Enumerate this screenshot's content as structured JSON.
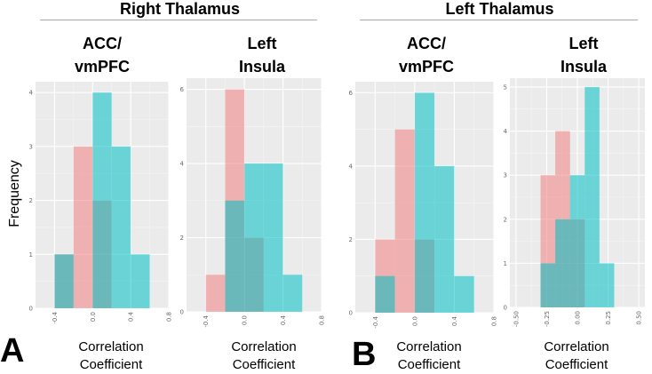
{
  "figure": {
    "left_section_title": "Right Thalamus",
    "right_section_title": "Left Thalamus",
    "y_axis_label": "Frequency",
    "panel_a_label": "A",
    "panel_b_label": "B",
    "column_titles": {
      "rt_acc": [
        "ACC/",
        "vmPFC"
      ],
      "rt_ins": [
        "Left",
        "Insula"
      ],
      "lt_acc": [
        "ACC/",
        "vmPFC"
      ],
      "lt_ins": [
        "Left",
        "Insula"
      ]
    },
    "x_labels": {
      "rt_acc": [
        "Correlation",
        "Coefficient"
      ],
      "rt_ins": [
        "Correlation",
        "Coefficient"
      ],
      "lt_acc": [
        "Correlation",
        "Coefficient"
      ],
      "lt_ins": [
        "Correlation",
        "Coefficient"
      ]
    }
  },
  "colors": {
    "series_a": "#f08080",
    "series_b": "#00bfc4",
    "panel_bg": "#ebebeb",
    "grid_major": "#ffffff"
  },
  "chart_data": [
    {
      "id": "rt_acc",
      "type": "histogram",
      "group": "Right Thalamus",
      "title": "ACC/ vmPFC",
      "xlabel": "Correlation Coefficient",
      "ylabel": "Frequency",
      "xlim": [
        -0.6,
        0.8
      ],
      "ylim": [
        0,
        4.2
      ],
      "xticks": [
        -0.4,
        0.0,
        0.4,
        0.8
      ],
      "xtick_labels": [
        "-0.4",
        "0.0",
        "0.4",
        "0.8"
      ],
      "yticks": [
        0,
        1,
        2,
        3,
        4
      ],
      "ytick_labels": [
        "0",
        "1",
        "2",
        "3",
        "4"
      ],
      "series": [
        {
          "name": "series_a",
          "bins": [
            [
              -0.4,
              -0.2,
              1
            ],
            [
              -0.2,
              0.0,
              3
            ],
            [
              0.0,
              0.2,
              2
            ]
          ]
        },
        {
          "name": "series_b",
          "bins": [
            [
              -0.4,
              -0.2,
              1
            ],
            [
              0.0,
              0.2,
              4
            ],
            [
              0.2,
              0.4,
              3
            ],
            [
              0.4,
              0.6,
              1
            ]
          ]
        }
      ]
    },
    {
      "id": "rt_ins",
      "type": "histogram",
      "group": "Right Thalamus",
      "title": "Left Insula",
      "xlabel": "Correlation Coefficient",
      "ylabel": "Frequency",
      "xlim": [
        -0.6,
        0.8
      ],
      "ylim": [
        0,
        6.3
      ],
      "xticks": [
        -0.4,
        0.0,
        0.4,
        0.8
      ],
      "xtick_labels": [
        "-0.4",
        "0.0",
        "0.4",
        "0.8"
      ],
      "yticks": [
        0,
        2,
        4,
        6
      ],
      "ytick_labels": [
        "0",
        "2",
        "4",
        "6"
      ],
      "series": [
        {
          "name": "series_a",
          "bins": [
            [
              -0.4,
              -0.2,
              1
            ],
            [
              -0.2,
              0.0,
              6
            ],
            [
              0.0,
              0.2,
              2
            ]
          ]
        },
        {
          "name": "series_b",
          "bins": [
            [
              -0.2,
              0.0,
              3
            ],
            [
              0.0,
              0.2,
              4
            ],
            [
              0.2,
              0.4,
              4
            ],
            [
              0.4,
              0.6,
              1
            ]
          ]
        }
      ]
    },
    {
      "id": "lt_acc",
      "type": "histogram",
      "group": "Left Thalamus",
      "title": "ACC/ vmPFC",
      "xlabel": "Correlation Coefficient",
      "ylabel": "Frequency",
      "xlim": [
        -0.6,
        0.8
      ],
      "ylim": [
        0,
        6.3
      ],
      "xticks": [
        -0.4,
        0.0,
        0.4,
        0.8
      ],
      "xtick_labels": [
        "-0.4",
        "0.0",
        "0.4",
        "0.8"
      ],
      "yticks": [
        0,
        2,
        4,
        6
      ],
      "ytick_labels": [
        "0",
        "2",
        "4",
        "6"
      ],
      "series": [
        {
          "name": "series_a",
          "bins": [
            [
              -0.4,
              -0.2,
              2
            ],
            [
              -0.2,
              0.0,
              5
            ],
            [
              0.0,
              0.2,
              2
            ]
          ]
        },
        {
          "name": "series_b",
          "bins": [
            [
              -0.4,
              -0.2,
              1
            ],
            [
              0.0,
              0.2,
              6
            ],
            [
              0.2,
              0.4,
              4
            ],
            [
              0.4,
              0.6,
              1
            ]
          ]
        }
      ]
    },
    {
      "id": "lt_ins",
      "type": "histogram",
      "group": "Left Thalamus",
      "title": "Left Insula",
      "xlabel": "Correlation Coefficient",
      "ylabel": "Frequency",
      "xlim": [
        -0.55,
        0.55
      ],
      "ylim": [
        0,
        5.2
      ],
      "xticks": [
        -0.5,
        -0.25,
        0.0,
        0.25,
        0.5
      ],
      "xtick_labels": [
        "-0.50",
        "-0.25",
        "0.00",
        "0.25",
        "0.50"
      ],
      "yticks": [
        0,
        1,
        2,
        3,
        4,
        5
      ],
      "ytick_labels": [
        "0",
        "1",
        "2",
        "3",
        "4",
        "5"
      ],
      "series": [
        {
          "name": "series_a",
          "bins": [
            [
              -0.3,
              -0.18,
              3
            ],
            [
              -0.18,
              -0.06,
              4
            ],
            [
              -0.06,
              0.06,
              2
            ]
          ]
        },
        {
          "name": "series_b",
          "bins": [
            [
              -0.3,
              -0.18,
              1
            ],
            [
              -0.18,
              -0.06,
              2
            ],
            [
              -0.06,
              0.06,
              3
            ],
            [
              0.06,
              0.18,
              5
            ],
            [
              0.18,
              0.3,
              1
            ]
          ]
        }
      ]
    }
  ]
}
